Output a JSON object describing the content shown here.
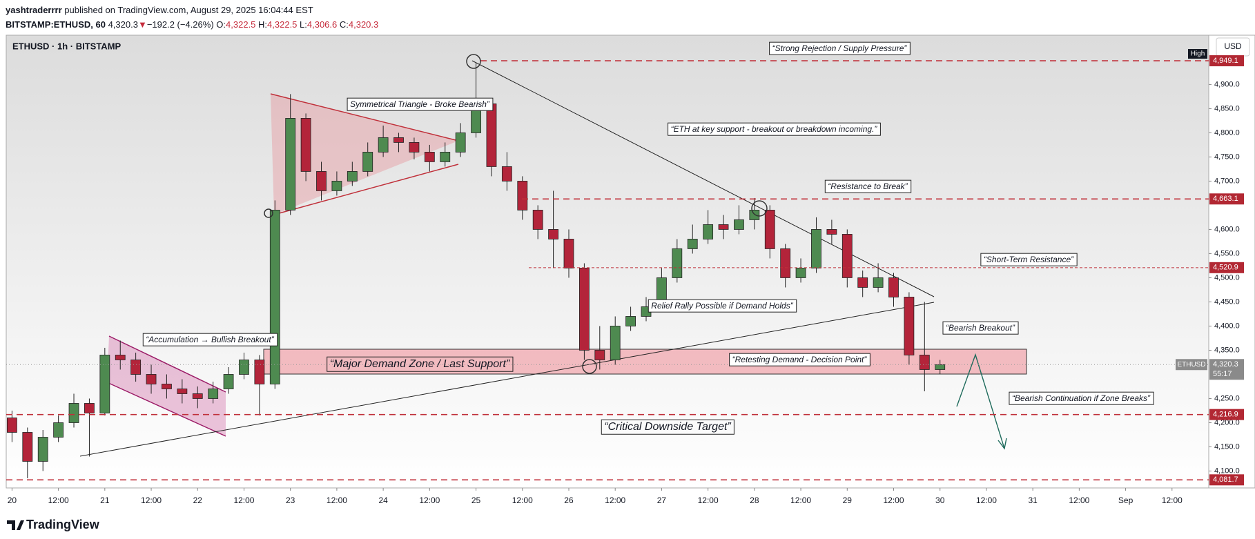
{
  "header": {
    "author": "yashtraderrrr",
    "published": "published on TradingView.com, August 29, 2025 16:04:44 EST",
    "symbol": "BITSTAMP:ETHUSD, 60",
    "last": "4,320.3",
    "change": "▼",
    "change_value": "−192.2 (−4.26%)",
    "ohlc": [
      {
        "key": "O:",
        "value": "4,322.5"
      },
      {
        "key": "H:",
        "value": "4,322.5"
      },
      {
        "key": "L:",
        "value": "4,306.6"
      },
      {
        "key": "C:",
        "value": "4,320.3"
      }
    ]
  },
  "brand": "TradingView",
  "chart_data": {
    "type": "candlestick",
    "title": "ETHUSD · 1h · BITSTAMP",
    "currency": "USD",
    "x": [
      0,
      4,
      8,
      12,
      16,
      20,
      24,
      28,
      32,
      36,
      40,
      44,
      48,
      52,
      56,
      60,
      64,
      68,
      72,
      76,
      80,
      84,
      88,
      92,
      96,
      100,
      104,
      108,
      112,
      116,
      120,
      124,
      128,
      132,
      136,
      140,
      144,
      148,
      152,
      156,
      160,
      164,
      168,
      172,
      176,
      180,
      184,
      188,
      192,
      196,
      200,
      204,
      208,
      212,
      216,
      220,
      224,
      228,
      232,
      236,
      240
    ],
    "open": [
      4210,
      4180,
      4120,
      4170,
      4200,
      4240,
      4220,
      4340,
      4330,
      4300,
      4280,
      4270,
      4260,
      4250,
      4270,
      4300,
      4330,
      4280,
      4640,
      4830,
      4720,
      4680,
      4700,
      4720,
      4760,
      4790,
      4780,
      4760,
      4740,
      4760,
      4800,
      4860,
      4730,
      4700,
      4640,
      4600,
      4580,
      4520,
      4350,
      4330,
      4400,
      4420,
      4440,
      4500,
      4560,
      4580,
      4610,
      4600,
      4620,
      4640,
      4560,
      4500,
      4520,
      4600,
      4590,
      4500,
      4480,
      4500,
      4460,
      4340,
      4310
    ],
    "high": [
      4225,
      4190,
      4185,
      4215,
      4260,
      4250,
      4355,
      4370,
      4345,
      4320,
      4300,
      4290,
      4275,
      4285,
      4315,
      4345,
      4340,
      4660,
      4880,
      4840,
      4740,
      4720,
      4740,
      4780,
      4815,
      4800,
      4790,
      4775,
      4780,
      4820,
      4945,
      4870,
      4760,
      4710,
      4650,
      4680,
      4600,
      4530,
      4400,
      4420,
      4440,
      4460,
      4520,
      4580,
      4610,
      4640,
      4630,
      4650,
      4665,
      4650,
      4570,
      4540,
      4625,
      4620,
      4600,
      4515,
      4530,
      4510,
      4470,
      4450,
      4330
    ],
    "low": [
      4160,
      4085,
      4100,
      4160,
      4190,
      4130,
      4215,
      4310,
      4285,
      4260,
      4250,
      4240,
      4230,
      4240,
      4260,
      4290,
      4215,
      4270,
      4630,
      4700,
      4660,
      4670,
      4690,
      4710,
      4750,
      4760,
      4745,
      4720,
      4730,
      4750,
      4790,
      4710,
      4680,
      4620,
      4580,
      4520,
      4500,
      4330,
      4310,
      4320,
      4390,
      4410,
      4430,
      4490,
      4550,
      4570,
      4580,
      4590,
      4600,
      4540,
      4480,
      4490,
      4510,
      4570,
      4480,
      4460,
      4470,
      4440,
      4320,
      4265,
      4300
    ],
    "close": [
      4180,
      4120,
      4170,
      4200,
      4240,
      4220,
      4340,
      4330,
      4300,
      4280,
      4270,
      4260,
      4250,
      4270,
      4300,
      4330,
      4280,
      4640,
      4830,
      4720,
      4680,
      4700,
      4720,
      4760,
      4790,
      4780,
      4760,
      4740,
      4760,
      4800,
      4860,
      4730,
      4700,
      4640,
      4600,
      4580,
      4520,
      4350,
      4330,
      4400,
      4420,
      4440,
      4500,
      4560,
      4580,
      4610,
      4600,
      4620,
      4640,
      4560,
      4500,
      4520,
      4600,
      4590,
      4500,
      4480,
      4500,
      4460,
      4340,
      4310,
      4320
    ],
    "up_color": "#4e8a50",
    "down_color": "#b3243a",
    "xlim": [
      -1.5,
      309.5
    ],
    "ylim": [
      4065,
      5002
    ],
    "xticks": [
      {
        "value": 0,
        "label": "20"
      },
      {
        "value": 12,
        "label": "12:00"
      },
      {
        "value": 24,
        "label": "21"
      },
      {
        "value": 36,
        "label": "12:00"
      },
      {
        "value": 48,
        "label": "22"
      },
      {
        "value": 60,
        "label": "12:00"
      },
      {
        "value": 72,
        "label": "23"
      },
      {
        "value": 84,
        "label": "12:00"
      },
      {
        "value": 96,
        "label": "24"
      },
      {
        "value": 108,
        "label": "12:00"
      },
      {
        "value": 120,
        "label": "25"
      },
      {
        "value": 132,
        "label": "12:00"
      },
      {
        "value": 144,
        "label": "26"
      },
      {
        "value": 156,
        "label": "12:00"
      },
      {
        "value": 168,
        "label": "27"
      },
      {
        "value": 180,
        "label": "12:00"
      },
      {
        "value": 192,
        "label": "28"
      },
      {
        "value": 204,
        "label": "12:00"
      },
      {
        "value": 216,
        "label": "29"
      },
      {
        "value": 228,
        "label": "12:00"
      },
      {
        "value": 240,
        "label": "30"
      },
      {
        "value": 252,
        "label": "12:00"
      },
      {
        "value": 264,
        "label": "31"
      },
      {
        "value": 276,
        "label": "12:00"
      },
      {
        "value": 288,
        "label": "Sep"
      },
      {
        "value": 300,
        "label": "12:00"
      }
    ],
    "yticks": [
      {
        "value": 4100,
        "label": "4,100.0"
      },
      {
        "value": 4150,
        "label": "4,150.0"
      },
      {
        "value": 4200,
        "label": "4,200.0"
      },
      {
        "value": 4250,
        "label": "4,250.0"
      },
      {
        "value": 4350,
        "label": "4,350.0"
      },
      {
        "value": 4400,
        "label": "4,400.0"
      },
      {
        "value": 4450,
        "label": "4,450.0"
      },
      {
        "value": 4500,
        "label": "4,500.0"
      },
      {
        "value": 4550,
        "label": "4,550.0"
      },
      {
        "value": 4600,
        "label": "4,600.0"
      },
      {
        "value": 4700,
        "label": "4,700.0"
      },
      {
        "value": 4750,
        "label": "4,750.0"
      },
      {
        "value": 4800,
        "label": "4,800.0"
      },
      {
        "value": 4850,
        "label": "4,850.0"
      },
      {
        "value": 4900,
        "label": "4,900.0"
      }
    ],
    "levels": [
      {
        "value": 4949.1,
        "label": "4,949.1"
      },
      {
        "value": 4663.1,
        "label": "4,663.1"
      },
      {
        "value": 4520.9,
        "label": "4,520.9"
      },
      {
        "value": 4216.9,
        "label": "4,216.9"
      },
      {
        "value": 4081.7,
        "label": "4,081.7"
      }
    ],
    "high_tag": "High",
    "last_price": {
      "value": 4320.3,
      "label": "4,320.3"
    },
    "last_symbol": "ETHUSD",
    "countdown": "55:17",
    "annotations": [
      "“Strong Rejection / Supply Pressure”",
      "Symmetrical Triangle - Broke Bearish”",
      "“ETH at key support - breakout or breakdown incoming.”",
      "“Resistance to Break”",
      "“Short-Term Resistance”",
      "Relief Rally Possible if Demand Holds”",
      "“Bearish Breakout”",
      "“Accumulation → Bullish Breakout”",
      "“Major Demand Zone / Last Support”",
      "“Retesting Demand - Decision Point”",
      "“Bearish Continuation if Zone Breaks”",
      "“Critical Downside Target”"
    ]
  }
}
